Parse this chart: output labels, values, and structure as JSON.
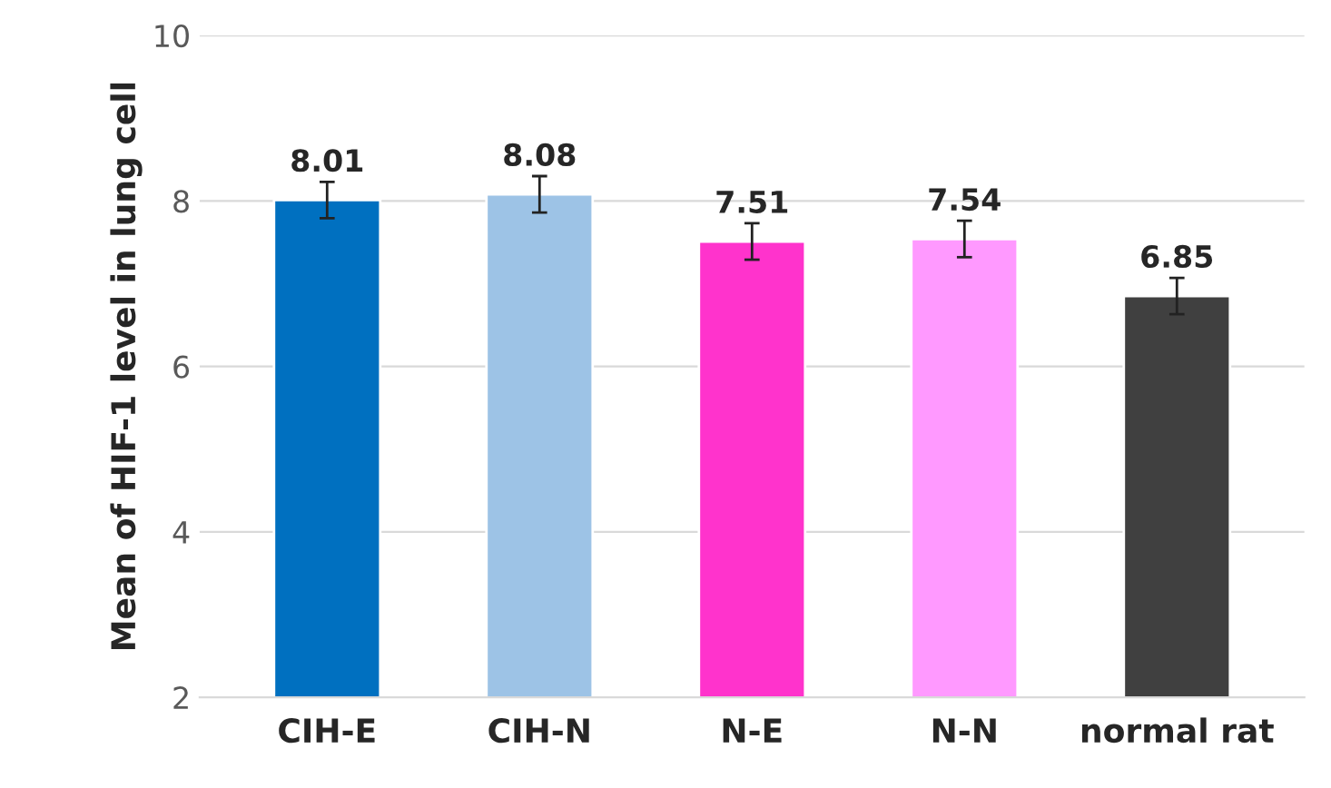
{
  "chart_data": {
    "type": "bar",
    "ylabel": "Mean of HIF-1 level in lung cell",
    "categories": [
      "CIH-E",
      "CIH-N",
      "N-E",
      "N-N",
      "normal rat"
    ],
    "values": [
      8.01,
      8.08,
      7.51,
      7.54,
      6.85
    ],
    "colors": [
      "#0070c0",
      "#9dc3e6",
      "#ff33cc",
      "#ff99ff",
      "#404040"
    ],
    "errors": [
      0.22,
      0.22,
      0.22,
      0.22,
      0.22
    ],
    "ylim": [
      2,
      10
    ],
    "yticks": [
      2,
      4,
      6,
      8,
      10
    ],
    "grid": "y",
    "data_labels": true
  }
}
